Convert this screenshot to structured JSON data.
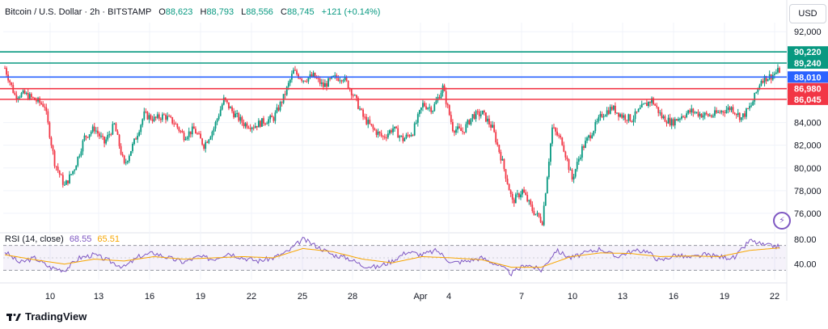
{
  "header": {
    "symbol": "Bitcoin / U.S. Dollar · 2h · BITSTAMP",
    "o_label": "O",
    "o_value": "88,623",
    "h_label": "H",
    "h_value": "88,793",
    "l_label": "L",
    "l_value": "88,556",
    "c_label": "C",
    "c_value": "88,745",
    "change": "+121 (+0.14%)"
  },
  "currency": "USD",
  "brand": "TradingView",
  "colors": {
    "up": "#089981",
    "down": "#f23645",
    "rsi": "#7e57c2",
    "rsi_ma": "#f7a600",
    "level_green": "#089981",
    "level_blue": "#2962ff",
    "level_red": "#f23645"
  },
  "chart_data": {
    "type": "candlestick",
    "yticks": [
      "92,000",
      "84,000",
      "82,000",
      "80,000",
      "78,000",
      "76,000"
    ],
    "ylim": [
      74500,
      92800
    ],
    "xticks": [
      "10",
      "13",
      "16",
      "19",
      "22",
      "25",
      "28",
      "Apr",
      "4",
      "7",
      "10",
      "13",
      "16",
      "19",
      "22"
    ],
    "levels": [
      {
        "label": "90,220",
        "value": 90220,
        "color": "#089981"
      },
      {
        "label": "89,240",
        "value": 89240,
        "color": "#089981"
      },
      {
        "label": "88,010",
        "value": 88010,
        "color": "#2962ff"
      },
      {
        "label": "86,980",
        "value": 86980,
        "color": "#f23645"
      },
      {
        "label": "86,045",
        "value": 86045,
        "color": "#f23645"
      }
    ],
    "price_path": [
      [
        0,
        88800
      ],
      [
        2,
        86400
      ],
      [
        4,
        86500
      ],
      [
        6,
        86000
      ],
      [
        8,
        85500
      ],
      [
        10,
        80500
      ],
      [
        12,
        78400
      ],
      [
        14,
        80000
      ],
      [
        16,
        82700
      ],
      [
        18,
        83500
      ],
      [
        20,
        82200
      ],
      [
        22,
        83800
      ],
      [
        24,
        80200
      ],
      [
        26,
        82300
      ],
      [
        28,
        84700
      ],
      [
        30,
        84300
      ],
      [
        32,
        84600
      ],
      [
        34,
        84000
      ],
      [
        36,
        82800
      ],
      [
        38,
        83400
      ],
      [
        40,
        82000
      ],
      [
        42,
        83500
      ],
      [
        44,
        86000
      ],
      [
        46,
        84800
      ],
      [
        48,
        83900
      ],
      [
        50,
        83700
      ],
      [
        52,
        84100
      ],
      [
        54,
        84400
      ],
      [
        56,
        86200
      ],
      [
        58,
        88500
      ],
      [
        60,
        87800
      ],
      [
        62,
        88100
      ],
      [
        64,
        87200
      ],
      [
        66,
        87900
      ],
      [
        68,
        88000
      ],
      [
        70,
        86500
      ],
      [
        72,
        84500
      ],
      [
        74,
        83400
      ],
      [
        76,
        82700
      ],
      [
        78,
        83500
      ],
      [
        80,
        82500
      ],
      [
        82,
        83200
      ],
      [
        84,
        85600
      ],
      [
        86,
        85200
      ],
      [
        88,
        87100
      ],
      [
        90,
        83500
      ],
      [
        92,
        83200
      ],
      [
        94,
        84600
      ],
      [
        96,
        84800
      ],
      [
        98,
        83500
      ],
      [
        100,
        80500
      ],
      [
        102,
        77000
      ],
      [
        104,
        78000
      ],
      [
        106,
        76300
      ],
      [
        108,
        75300
      ],
      [
        110,
        83500
      ],
      [
        112,
        82300
      ],
      [
        114,
        79000
      ],
      [
        116,
        81700
      ],
      [
        118,
        83200
      ],
      [
        120,
        84700
      ],
      [
        122,
        85300
      ],
      [
        124,
        84600
      ],
      [
        126,
        84300
      ],
      [
        128,
        85300
      ],
      [
        130,
        86000
      ],
      [
        132,
        84500
      ],
      [
        134,
        84000
      ],
      [
        136,
        84600
      ],
      [
        138,
        85000
      ],
      [
        140,
        84700
      ],
      [
        142,
        84600
      ],
      [
        144,
        85000
      ],
      [
        146,
        85300
      ],
      [
        148,
        84400
      ],
      [
        150,
        85500
      ],
      [
        152,
        87800
      ],
      [
        154,
        88100
      ],
      [
        156,
        88700
      ]
    ],
    "rsi": {
      "label": "RSI (14, close)",
      "value": "68.55",
      "ma_value": "65.51",
      "yticks": [
        "80.00",
        "40.00"
      ],
      "ylim": [
        15,
        85
      ],
      "band": [
        30,
        70
      ],
      "path": [
        [
          0,
          60
        ],
        [
          3,
          42
        ],
        [
          6,
          50
        ],
        [
          9,
          35
        ],
        [
          12,
          30
        ],
        [
          15,
          50
        ],
        [
          18,
          55
        ],
        [
          21,
          45
        ],
        [
          24,
          35
        ],
        [
          27,
          52
        ],
        [
          30,
          58
        ],
        [
          33,
          50
        ],
        [
          36,
          43
        ],
        [
          39,
          52
        ],
        [
          42,
          48
        ],
        [
          45,
          58
        ],
        [
          48,
          50
        ],
        [
          51,
          45
        ],
        [
          54,
          50
        ],
        [
          57,
          60
        ],
        [
          60,
          80
        ],
        [
          63,
          68
        ],
        [
          66,
          55
        ],
        [
          69,
          50
        ],
        [
          72,
          38
        ],
        [
          75,
          35
        ],
        [
          78,
          45
        ],
        [
          81,
          60
        ],
        [
          84,
          55
        ],
        [
          87,
          62
        ],
        [
          90,
          42
        ],
        [
          93,
          45
        ],
        [
          96,
          50
        ],
        [
          99,
          40
        ],
        [
          102,
          25
        ],
        [
          105,
          40
        ],
        [
          108,
          30
        ],
        [
          111,
          62
        ],
        [
          114,
          50
        ],
        [
          117,
          58
        ],
        [
          120,
          65
        ],
        [
          123,
          52
        ],
        [
          126,
          60
        ],
        [
          129,
          62
        ],
        [
          132,
          45
        ],
        [
          135,
          55
        ],
        [
          138,
          50
        ],
        [
          141,
          55
        ],
        [
          144,
          52
        ],
        [
          147,
          50
        ],
        [
          150,
          78
        ],
        [
          153,
          70
        ],
        [
          156,
          68
        ]
      ],
      "ma_path": [
        [
          0,
          55
        ],
        [
          6,
          47
        ],
        [
          12,
          40
        ],
        [
          18,
          48
        ],
        [
          24,
          45
        ],
        [
          30,
          52
        ],
        [
          36,
          48
        ],
        [
          42,
          50
        ],
        [
          48,
          52
        ],
        [
          54,
          50
        ],
        [
          60,
          65
        ],
        [
          66,
          60
        ],
        [
          72,
          48
        ],
        [
          78,
          42
        ],
        [
          84,
          52
        ],
        [
          90,
          50
        ],
        [
          96,
          47
        ],
        [
          102,
          35
        ],
        [
          108,
          35
        ],
        [
          114,
          52
        ],
        [
          120,
          58
        ],
        [
          126,
          57
        ],
        [
          132,
          52
        ],
        [
          138,
          53
        ],
        [
          144,
          52
        ],
        [
          150,
          62
        ],
        [
          156,
          66
        ]
      ]
    }
  }
}
